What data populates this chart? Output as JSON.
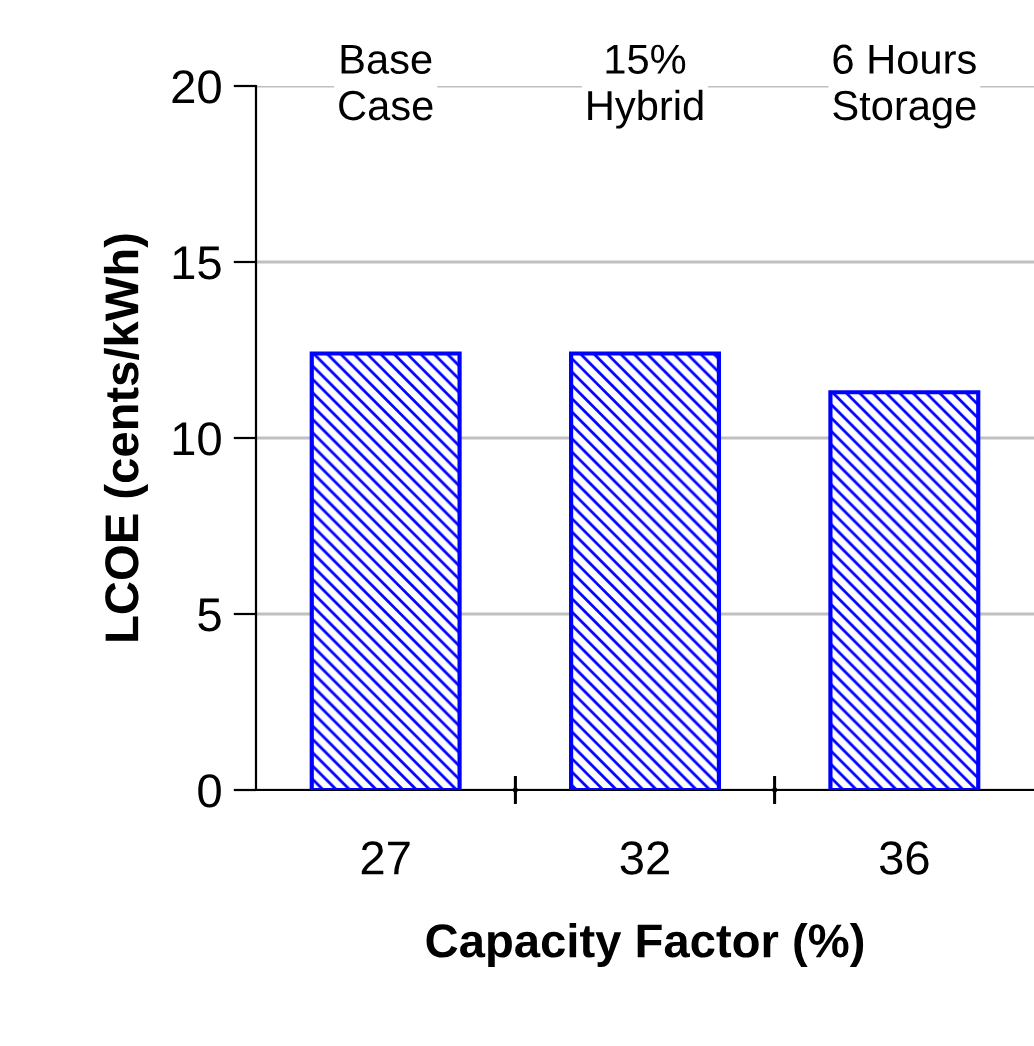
{
  "chart_data": {
    "type": "bar",
    "xlabel": "Capacity Factor (%)",
    "ylabel": "LCOE (cents/kWh)",
    "categories": [
      "27",
      "32",
      "36"
    ],
    "values": [
      12.4,
      12.4,
      11.3
    ],
    "color": "#0000ff",
    "ylim": [
      0,
      20
    ],
    "yticks": [
      0,
      5,
      10,
      15,
      20
    ],
    "grid": "y",
    "annotations": [
      "Base\nCase",
      "15%\nHybrid",
      "6 Hours\nStorage"
    ]
  }
}
